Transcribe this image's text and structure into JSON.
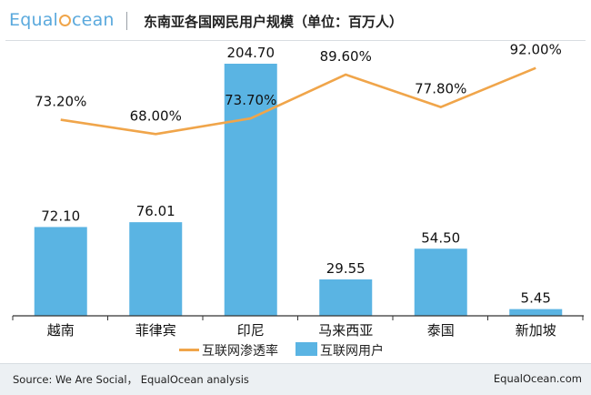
{
  "header": {
    "logo_prefix": "Equal",
    "logo_suffix": "cean",
    "title": "东南亚各国网民用户规模（单位：百万人）"
  },
  "colors": {
    "bar": "#5ab4e3",
    "line": "#f0a54a",
    "axis": "#333333"
  },
  "chart_data": {
    "type": "bar+line",
    "title": "东南亚各国网民用户规模（单位：百万人）",
    "categories": [
      "越南",
      "菲律宾",
      "印尼",
      "马来西亚",
      "泰国",
      "新加坡"
    ],
    "series": [
      {
        "name": "互联网用户",
        "type": "bar",
        "values": [
          72.1,
          76.01,
          204.7,
          29.55,
          54.5,
          5.45
        ],
        "labels": [
          "72.10",
          "76.01",
          "204.70",
          "29.55",
          "54.50",
          "5.45"
        ]
      },
      {
        "name": "互联网渗透率",
        "type": "line",
        "values": [
          73.2,
          68.0,
          73.7,
          89.6,
          77.8,
          92.0
        ],
        "labels": [
          "73.20%",
          "68.00%",
          "73.70%",
          "89.60%",
          "77.80%",
          "92.00%"
        ]
      }
    ],
    "bar_axis_range": [
      0,
      225
    ],
    "line_axis_range": [
      0,
      100
    ],
    "grid": false,
    "legend": "bottom-center"
  },
  "footer": {
    "source": "Source: We Are Social， EqualOcean analysis",
    "site": "EqualOcean.com"
  }
}
